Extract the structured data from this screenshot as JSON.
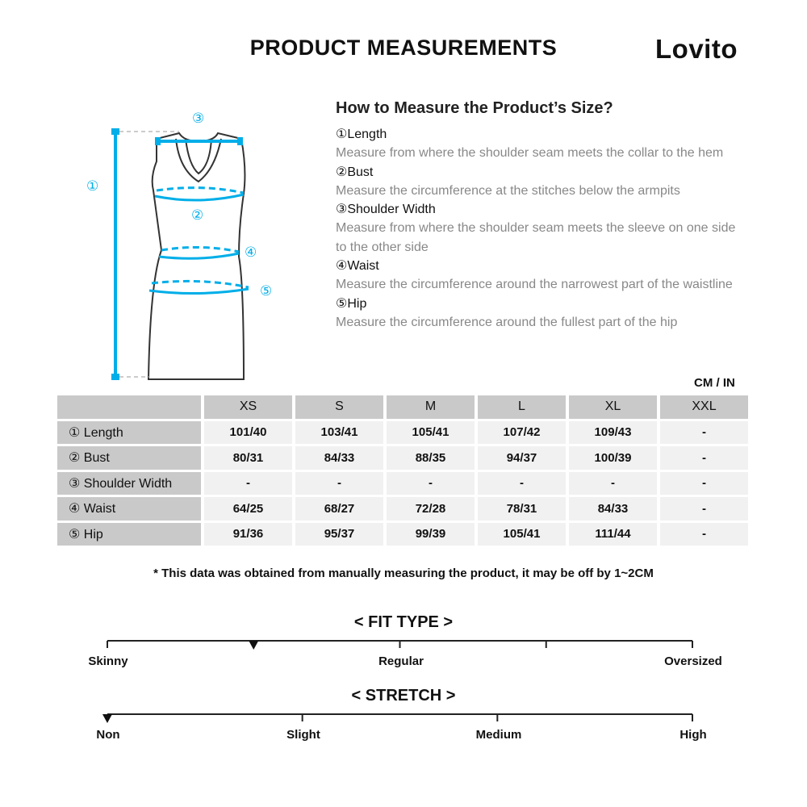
{
  "header": {
    "title": "PRODUCT MEASUREMENTS",
    "brand": "Lovito"
  },
  "diagram": {
    "markers": [
      "①",
      "②",
      "③",
      "④",
      "⑤"
    ],
    "accent_color": "#00aee8"
  },
  "guide": {
    "title": "How to Measure the Product’s Size?",
    "items": [
      {
        "heading": "①Length",
        "desc": "Measure from where the shoulder seam meets the collar to the hem"
      },
      {
        "heading": "②Bust",
        "desc": "Measure the circumference at the stitches below the armpits"
      },
      {
        "heading": "③Shoulder Width",
        "desc": "Measure from where the shoulder seam meets the sleeve on one side to the other side"
      },
      {
        "heading": "④Waist",
        "desc": "Measure the circumference around the narrowest part of the waistline"
      },
      {
        "heading": "⑤Hip",
        "desc": "Measure the circumference around the fullest part of the hip"
      }
    ]
  },
  "table": {
    "unit": "CM / IN",
    "sizes": [
      "XS",
      "S",
      "M",
      "L",
      "XL",
      "XXL"
    ],
    "rows": [
      {
        "label": "① Length",
        "values": [
          "101/40",
          "103/41",
          "105/41",
          "107/42",
          "109/43",
          "-"
        ]
      },
      {
        "label": "② Bust",
        "values": [
          "80/31",
          "84/33",
          "88/35",
          "94/37",
          "100/39",
          "-"
        ]
      },
      {
        "label": "③ Shoulder Width",
        "values": [
          "-",
          "-",
          "-",
          "-",
          "-",
          "-"
        ]
      },
      {
        "label": "④ Waist",
        "values": [
          "64/25",
          "68/27",
          "72/28",
          "78/31",
          "84/33",
          "-"
        ]
      },
      {
        "label": "⑤ Hip",
        "values": [
          "91/36",
          "95/37",
          "99/39",
          "105/41",
          "111/44",
          "-"
        ]
      }
    ]
  },
  "note": "* This data was obtained from manually measuring the product, it may be off by 1~2CM",
  "fit_type": {
    "title": "< FIT TYPE >",
    "labels": [
      "Skinny",
      "Regular",
      "Oversized"
    ],
    "marker_fraction": 0.25
  },
  "stretch": {
    "title": "< STRETCH >",
    "labels": [
      "Non",
      "Slight",
      "Medium",
      "High"
    ],
    "marker_fraction": 0
  }
}
